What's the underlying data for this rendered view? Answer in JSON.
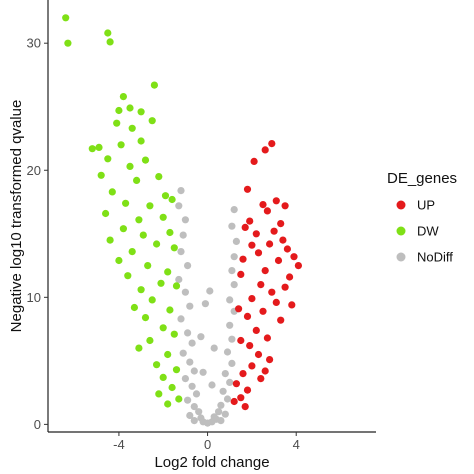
{
  "chart_data": {
    "type": "scatter",
    "title": "",
    "xlabel": "Log2 fold change",
    "ylabel": "Negative log10 transformed qvalue",
    "xlim": [
      -7.2,
      7.6
    ],
    "ylim": [
      -0.6,
      33.4
    ],
    "x_ticks": [
      -4,
      0,
      4
    ],
    "y_ticks": [
      0,
      10,
      20,
      30
    ],
    "grid": false,
    "legend": {
      "title": "DE_genes",
      "position": "right",
      "entries": [
        {
          "label": "UP",
          "color": "#e41a1c"
        },
        {
          "label": "DW",
          "color": "#7fe016"
        },
        {
          "label": "NoDiff",
          "color": "#bebebe"
        }
      ]
    },
    "series": [
      {
        "name": "UP",
        "color": "#e41a1c",
        "points": [
          [
            2.6,
            21.6
          ],
          [
            2.9,
            22.1
          ],
          [
            2.1,
            20.7
          ],
          [
            1.8,
            18.5
          ],
          [
            2.5,
            17.3
          ],
          [
            3.1,
            17.6
          ],
          [
            3.5,
            17.2
          ],
          [
            2.7,
            16.8
          ],
          [
            3.3,
            15.8
          ],
          [
            3.0,
            15.2
          ],
          [
            2.2,
            15.0
          ],
          [
            1.7,
            15.5
          ],
          [
            3.9,
            13.2
          ],
          [
            3.6,
            13.8
          ],
          [
            4.1,
            12.5
          ],
          [
            2.8,
            14.2
          ],
          [
            3.4,
            14.5
          ],
          [
            2.0,
            14.1
          ],
          [
            1.9,
            16.0
          ],
          [
            2.3,
            13.5
          ],
          [
            3.2,
            12.9
          ],
          [
            2.6,
            12.1
          ],
          [
            1.6,
            13.0
          ],
          [
            3.7,
            11.6
          ],
          [
            2.4,
            11.0
          ],
          [
            2.9,
            10.4
          ],
          [
            1.5,
            11.8
          ],
          [
            3.1,
            9.6
          ],
          [
            2.0,
            9.9
          ],
          [
            1.8,
            8.5
          ],
          [
            2.5,
            8.9
          ],
          [
            3.3,
            8.2
          ],
          [
            2.2,
            7.4
          ],
          [
            1.4,
            9.1
          ],
          [
            2.7,
            6.8
          ],
          [
            1.9,
            6.2
          ],
          [
            2.3,
            5.5
          ],
          [
            1.5,
            6.6
          ],
          [
            2.8,
            5.1
          ],
          [
            2.0,
            4.6
          ],
          [
            1.6,
            4.0
          ],
          [
            2.4,
            3.6
          ],
          [
            1.3,
            3.2
          ],
          [
            1.8,
            2.7
          ],
          [
            1.5,
            2.1
          ],
          [
            1.2,
            1.8
          ],
          [
            1.7,
            1.4
          ],
          [
            3.5,
            10.8
          ],
          [
            3.8,
            9.4
          ],
          [
            2.6,
            4.2
          ]
        ]
      },
      {
        "name": "DW",
        "color": "#7fe016",
        "points": [
          [
            -6.4,
            32.0
          ],
          [
            -6.3,
            30.0
          ],
          [
            -4.5,
            30.8
          ],
          [
            -4.4,
            30.1
          ],
          [
            -2.4,
            26.7
          ],
          [
            -3.8,
            25.8
          ],
          [
            -4.0,
            24.7
          ],
          [
            -3.5,
            24.9
          ],
          [
            -3.0,
            24.6
          ],
          [
            -3.4,
            23.3
          ],
          [
            -2.5,
            23.9
          ],
          [
            -4.1,
            23.7
          ],
          [
            -3.9,
            22.0
          ],
          [
            -3.0,
            22.3
          ],
          [
            -4.9,
            21.8
          ],
          [
            -5.2,
            21.7
          ],
          [
            -4.5,
            20.9
          ],
          [
            -3.5,
            20.3
          ],
          [
            -2.8,
            20.8
          ],
          [
            -4.8,
            19.6
          ],
          [
            -3.2,
            19.2
          ],
          [
            -2.2,
            19.5
          ],
          [
            -4.3,
            18.3
          ],
          [
            -1.9,
            18.0
          ],
          [
            -3.7,
            17.4
          ],
          [
            -2.6,
            17.2
          ],
          [
            -1.6,
            17.7
          ],
          [
            -4.6,
            16.6
          ],
          [
            -3.1,
            16.1
          ],
          [
            -2.0,
            16.3
          ],
          [
            -3.8,
            15.4
          ],
          [
            -2.9,
            14.9
          ],
          [
            -1.7,
            15.1
          ],
          [
            -4.4,
            14.5
          ],
          [
            -2.3,
            14.2
          ],
          [
            -3.4,
            13.6
          ],
          [
            -1.5,
            13.9
          ],
          [
            -4.0,
            12.9
          ],
          [
            -2.7,
            12.5
          ],
          [
            -1.8,
            12.0
          ],
          [
            -3.6,
            11.7
          ],
          [
            -2.1,
            11.1
          ],
          [
            -3.0,
            10.6
          ],
          [
            -1.4,
            10.9
          ],
          [
            -2.5,
            9.8
          ],
          [
            -3.3,
            9.2
          ],
          [
            -1.7,
            9.0
          ],
          [
            -2.8,
            8.4
          ],
          [
            -2.0,
            7.6
          ],
          [
            -1.5,
            7.1
          ],
          [
            -2.6,
            6.6
          ],
          [
            -3.1,
            6.0
          ],
          [
            -1.8,
            5.5
          ],
          [
            -2.3,
            4.7
          ],
          [
            -1.4,
            4.3
          ],
          [
            -2.0,
            3.7
          ],
          [
            -1.6,
            2.9
          ],
          [
            -2.2,
            2.4
          ],
          [
            -1.3,
            2.0
          ],
          [
            -1.8,
            1.6
          ]
        ]
      },
      {
        "name": "NoDiff",
        "color": "#bebebe",
        "points": [
          [
            -1.2,
            18.4
          ],
          [
            -1.3,
            17.2
          ],
          [
            -1.0,
            16.1
          ],
          [
            -1.1,
            14.9
          ],
          [
            -1.2,
            13.6
          ],
          [
            -0.9,
            12.5
          ],
          [
            -1.3,
            11.4
          ],
          [
            -1.0,
            10.4
          ],
          [
            -0.8,
            9.3
          ],
          [
            -1.2,
            8.3
          ],
          [
            -0.9,
            7.2
          ],
          [
            -0.7,
            6.4
          ],
          [
            -1.1,
            5.6
          ],
          [
            -0.8,
            4.9
          ],
          [
            -0.6,
            4.2
          ],
          [
            -1.0,
            3.6
          ],
          [
            -0.7,
            3.0
          ],
          [
            -0.5,
            2.4
          ],
          [
            -0.9,
            1.9
          ],
          [
            -0.6,
            1.4
          ],
          [
            -0.4,
            1.0
          ],
          [
            -0.8,
            0.7
          ],
          [
            -0.3,
            0.5
          ],
          [
            -0.6,
            0.3
          ],
          [
            -0.2,
            0.2
          ],
          [
            0.0,
            0.1
          ],
          [
            0.2,
            0.2
          ],
          [
            0.4,
            0.4
          ],
          [
            0.6,
            0.3
          ],
          [
            0.3,
            0.6
          ],
          [
            0.5,
            1.0
          ],
          [
            0.8,
            0.8
          ],
          [
            0.6,
            1.5
          ],
          [
            0.9,
            2.0
          ],
          [
            0.7,
            2.6
          ],
          [
            1.0,
            3.3
          ],
          [
            0.8,
            4.0
          ],
          [
            1.1,
            4.8
          ],
          [
            0.9,
            5.7
          ],
          [
            1.1,
            6.7
          ],
          [
            1.0,
            7.8
          ],
          [
            1.2,
            8.9
          ],
          [
            1.0,
            9.8
          ],
          [
            1.2,
            11.0
          ],
          [
            1.1,
            12.1
          ],
          [
            1.2,
            13.2
          ],
          [
            1.3,
            14.4
          ],
          [
            1.1,
            15.6
          ],
          [
            1.2,
            16.9
          ],
          [
            -0.1,
            9.5
          ],
          [
            0.1,
            10.5
          ],
          [
            -0.3,
            6.9
          ],
          [
            0.3,
            6.0
          ],
          [
            -0.2,
            4.1
          ],
          [
            0.2,
            3.1
          ]
        ]
      }
    ]
  }
}
